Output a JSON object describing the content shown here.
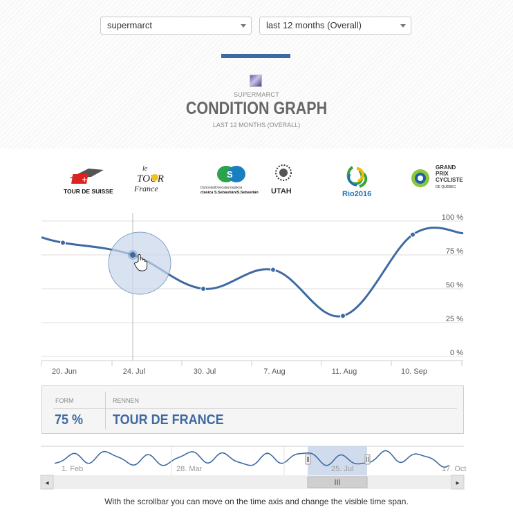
{
  "filters": {
    "team_select": "supermarct",
    "period_select": "last 12 months (Overall)"
  },
  "header": {
    "team_name": "SUPERMARCT",
    "title": "CONDITION GRAPH",
    "subtitle": "LAST 12 MONTHS (OVERALL)"
  },
  "race_logos": [
    {
      "name": "Tour de Suisse",
      "label": "TOUR DE SUISSE"
    },
    {
      "name": "Tour de France",
      "label_top": "le",
      "label_main": "TOUR",
      "label_bottom": "France"
    },
    {
      "name": "Clásica San Sebastián",
      "label_1": "Donostia/Donostia klasikoa",
      "label_2": "clásica S.Sebastián/S.Sebastián"
    },
    {
      "name": "Tour of Utah",
      "label": "UTAH"
    },
    {
      "name": "Rio 2016",
      "label": "Rio2016"
    },
    {
      "name": "Grand Prix Cycliste de Québec",
      "label_1": "GRAND",
      "label_2": "PRIX",
      "label_3": "CYCLISTE",
      "label_4": "DE QUÉBEC"
    }
  ],
  "chart_data": {
    "type": "line",
    "x": [
      "20. Jun",
      "24. Jul",
      "30. Jul",
      "7. Aug",
      "11. Aug",
      "10. Sep"
    ],
    "series": [
      {
        "values": [
          84,
          75,
          50,
          64,
          30,
          90
        ]
      }
    ],
    "y_ticks": [
      "100 %",
      "75 %",
      "50 %",
      "25 %",
      "0 %"
    ],
    "ylim": [
      0,
      100
    ],
    "grid": true,
    "highlighted_point": {
      "x": "24. Jul",
      "value": 75
    }
  },
  "tooltip": {
    "form_header": "FORM",
    "race_header": "RENNEN",
    "form_value": "75 %",
    "race_value": "TOUR DE FRANCE"
  },
  "navigator": {
    "labels": [
      "1. Feb",
      "28. Mar",
      "25. Jul",
      "17. Oct"
    ],
    "left_arrow": "◂",
    "right_arrow": "▸"
  },
  "help_text": "With the scrollbar you can move on the time axis and change the visible time span.",
  "colors": {
    "accent": "#3e6aa1",
    "grid": "#dddddd",
    "highlight_fill": "#c8d6ea"
  }
}
